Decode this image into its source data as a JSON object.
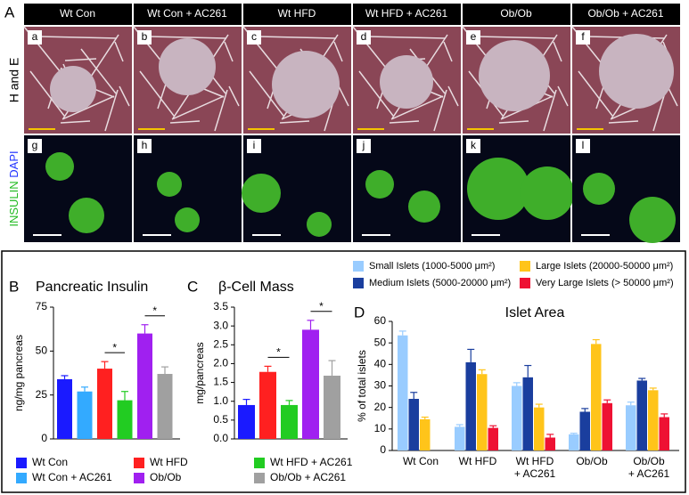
{
  "figure": {
    "panel_a": {
      "label": "A",
      "columns": [
        "Wt Con",
        "Wt Con + AC261",
        "Wt HFD",
        "Wt HFD + AC261",
        "Ob/Ob",
        "Ob/Ob + AC261"
      ],
      "row_1": "H and E",
      "row_2_stain": "INSULIN",
      "row_2_counterstain": "DAPI",
      "panels": [
        "a",
        "b",
        "c",
        "d",
        "e",
        "f",
        "g",
        "h",
        "i",
        "j",
        "k",
        "l"
      ]
    }
  },
  "chart_data": [
    {
      "type": "bar",
      "panel": "B",
      "title": "Pancreatic Insulin",
      "y_label": "ng/mg pancreas",
      "categories": [
        "Wt Con",
        "Wt Con + AC261",
        "Wt HFD",
        "Wt HFD + AC261",
        "Ob/Ob",
        "Ob/Ob + AC261"
      ],
      "values": [
        34,
        27,
        40,
        22,
        60,
        37
      ],
      "errors": [
        2,
        2.5,
        4,
        5,
        5,
        4
      ],
      "colors": [
        "#1a1aff",
        "#33aaff",
        "#ff2020",
        "#22cc22",
        "#a020f0",
        "#a0a0a0"
      ],
      "ylim": [
        0,
        75
      ],
      "yticks": [
        0,
        25,
        50,
        75
      ],
      "annotations": [
        "*",
        "*"
      ]
    },
    {
      "type": "bar",
      "panel": "C",
      "title": "β-Cell Mass",
      "y_label": "mg/pancreas",
      "categories": [
        "Wt Con",
        "Wt HFD",
        "Wt HFD + AC261",
        "Ob/Ob",
        "Ob/Ob + AC261"
      ],
      "values": [
        0.9,
        1.78,
        0.9,
        2.9,
        1.68
      ],
      "errors": [
        0.15,
        0.15,
        0.12,
        0.25,
        0.4
      ],
      "colors": [
        "#1a1aff",
        "#ff2020",
        "#22cc22",
        "#a020f0",
        "#a0a0a0"
      ],
      "ylim": [
        0,
        3.5
      ],
      "yticks": [
        {
          "value": 0,
          "label": "0.0"
        },
        0.5,
        {
          "value": 1,
          "label": "1.0"
        },
        1.5,
        {
          "value": 2,
          "label": "2.0"
        },
        2.5,
        {
          "value": 3,
          "label": "3.0"
        },
        3.5
      ],
      "annotations": [
        "*",
        "*"
      ]
    },
    {
      "type": "grouped-bar",
      "panel": "D",
      "title": "Islet Area",
      "y_label": "% of total islets",
      "categories": [
        "Wt Con",
        "Wt HFD",
        "Wt HFD\n+ AC261",
        "Ob/Ob",
        "Ob/Ob\n+ AC261"
      ],
      "series": [
        {
          "name": "Small Islets (1000-5000 μm²)",
          "color": "#99ccff",
          "values": [
            53.5,
            11,
            30,
            7.5,
            21
          ],
          "errors": [
            2,
            1,
            1.5,
            0.5,
            1.5
          ]
        },
        {
          "name": "Medium Islets (5000-20000 μm²)",
          "color": "#1a3e9e",
          "values": [
            24,
            41,
            34,
            18,
            32.5
          ],
          "errors": [
            3,
            6,
            5.5,
            1.5,
            1
          ]
        },
        {
          "name": "Large Islets (20000-50000 μm²)",
          "color": "#ffc41a",
          "values": [
            14.5,
            35.5,
            20,
            49.5,
            28
          ],
          "errors": [
            1,
            2,
            1.5,
            2,
            1
          ]
        },
        {
          "name": "Very Large Islets (> 50000 μm²)",
          "color": "#ee1133",
          "values": [
            null,
            10.5,
            6,
            22,
            15.5
          ],
          "errors": [
            null,
            1,
            1.5,
            1.5,
            1.5
          ]
        }
      ],
      "ylim": [
        0,
        60
      ],
      "yticks": [
        0,
        10,
        20,
        30,
        40,
        50,
        60
      ]
    }
  ]
}
